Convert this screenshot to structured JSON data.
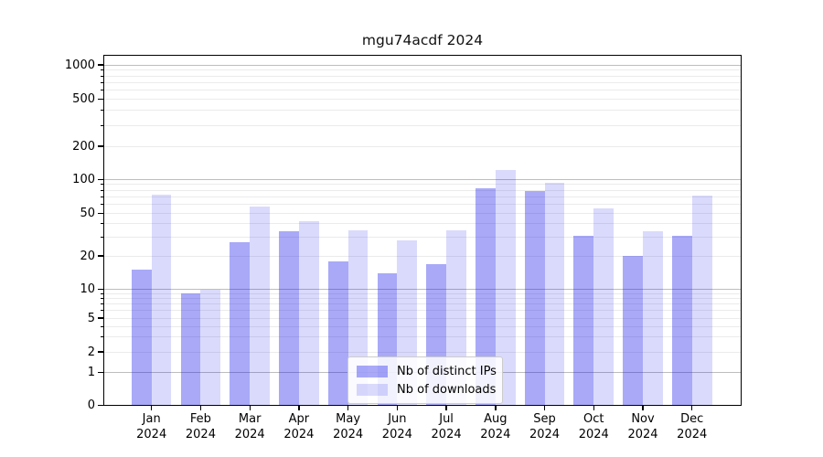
{
  "chart_data": {
    "type": "bar",
    "title": "mgu74acdf 2024",
    "scale": "symlog",
    "grid": "on",
    "xlabel": "",
    "ylabel": "",
    "categories": [
      "Jan",
      "Feb",
      "Mar",
      "Apr",
      "May",
      "Jun",
      "Jul",
      "Aug",
      "Sep",
      "Oct",
      "Nov",
      "Dec"
    ],
    "category_year": "2024",
    "series": [
      {
        "name": "Nb of distinct IPs",
        "color": "#a9a9f6",
        "fill": "rgba(10,10,235,0.35)",
        "values": [
          15,
          9,
          27,
          34,
          18,
          14,
          17,
          83,
          79,
          31,
          20,
          31
        ]
      },
      {
        "name": "Nb of downloads",
        "color": "#dcdcfa",
        "fill": "rgba(10,10,235,0.15)",
        "values": [
          73,
          10,
          57,
          42,
          35,
          28,
          35,
          122,
          93,
          55,
          34,
          72
        ]
      }
    ],
    "y_ticks": [
      1000,
      500,
      200,
      100,
      50,
      20,
      10,
      5,
      2,
      1,
      0
    ],
    "y_minor_gridlines": [
      3,
      4,
      6,
      7,
      8,
      9,
      30,
      40,
      60,
      70,
      80,
      90,
      300,
      400,
      600,
      700,
      800,
      900
    ],
    "ylim": [
      0,
      1280
    ],
    "legend": {
      "position": "lower center",
      "entries": [
        "Nb of distinct IPs",
        "Nb of downloads"
      ]
    }
  }
}
